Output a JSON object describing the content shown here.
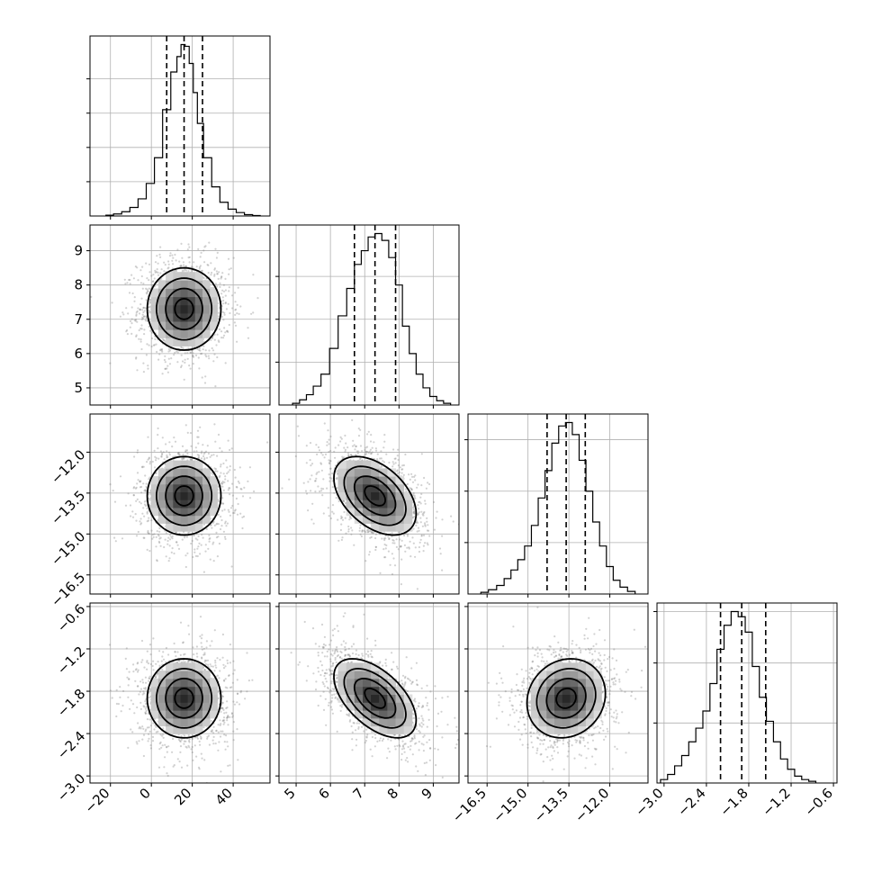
{
  "chart_data": {
    "type": "corner",
    "grid": true,
    "quantiles": [
      0.16,
      0.5,
      0.84
    ],
    "params": [
      {
        "range": [
          -30,
          58
        ],
        "ticks": [
          -20,
          0,
          20,
          40
        ],
        "tick_labels": [
          "−20",
          "0",
          "20",
          "40"
        ],
        "mean": 16,
        "sd": 9,
        "q": [
          7.5,
          16,
          25
        ],
        "hist_x": [
          -20.5,
          -16.5,
          -12.5,
          -8.5,
          -4.5,
          -0.5,
          3.5,
          7.5,
          11.5,
          13.5,
          15.5,
          17.5,
          19.5,
          21.5,
          23.5,
          27.5,
          31.5,
          35.5,
          39.5,
          43.5,
          47.5,
          51.5
        ],
        "hist_counts": [
          0.005,
          0.012,
          0.025,
          0.05,
          0.1,
          0.19,
          0.34,
          0.62,
          0.84,
          0.93,
          1.0,
          0.99,
          0.89,
          0.72,
          0.54,
          0.34,
          0.17,
          0.08,
          0.04,
          0.02,
          0.008,
          0.003
        ],
        "hist_yticks": [
          0.2,
          0.4,
          0.6,
          0.8
        ]
      },
      {
        "range": [
          4.5,
          9.75
        ],
        "ticks": [
          5,
          6,
          7,
          8,
          9
        ],
        "tick_labels": [
          "5",
          "6",
          "7",
          "8",
          "9"
        ],
        "mean": 7.3,
        "sd": 0.6,
        "q": [
          6.7,
          7.3,
          7.9
        ],
        "hist_x": [
          5.0,
          5.2,
          5.4,
          5.6,
          5.85,
          6.1,
          6.35,
          6.6,
          6.8,
          7.0,
          7.2,
          7.4,
          7.6,
          7.8,
          8.0,
          8.2,
          8.4,
          8.6,
          8.8,
          9.0,
          9.2,
          9.4
        ],
        "hist_counts": [
          0.01,
          0.03,
          0.06,
          0.11,
          0.18,
          0.33,
          0.52,
          0.68,
          0.82,
          0.9,
          0.98,
          1.0,
          0.96,
          0.86,
          0.7,
          0.46,
          0.3,
          0.18,
          0.1,
          0.05,
          0.025,
          0.01
        ],
        "hist_yticks": [
          0.25,
          0.5,
          0.75
        ]
      },
      {
        "range": [
          -17.2,
          -10.6
        ],
        "ticks": [
          -16.5,
          -15.0,
          -13.5,
          -12.0
        ],
        "tick_labels": [
          "−16.5",
          "−15.0",
          "−13.5",
          "−12.0"
        ],
        "mean": -13.6,
        "sd": 0.72,
        "q": [
          -14.3,
          -13.6,
          -12.9
        ],
        "hist_x": [
          -16.6,
          -16.3,
          -16.0,
          -15.75,
          -15.5,
          -15.25,
          -15.0,
          -14.75,
          -14.5,
          -14.25,
          -14.0,
          -13.75,
          -13.5,
          -13.25,
          -13.0,
          -12.75,
          -12.5,
          -12.25,
          -12.0,
          -11.75,
          -11.5,
          -11.2
        ],
        "hist_counts": [
          0.01,
          0.025,
          0.05,
          0.09,
          0.14,
          0.2,
          0.28,
          0.4,
          0.56,
          0.72,
          0.88,
          0.98,
          1.0,
          0.93,
          0.78,
          0.6,
          0.42,
          0.28,
          0.16,
          0.08,
          0.04,
          0.015
        ],
        "hist_yticks": [
          0.3,
          0.6,
          0.9
        ]
      },
      {
        "range": [
          -3.1,
          -0.55
        ],
        "ticks": [
          -3.0,
          -2.4,
          -1.8,
          -1.2,
          -0.6
        ],
        "tick_labels": [
          "−3.0",
          "−2.4",
          "−1.8",
          "−1.2",
          "−0.6"
        ],
        "mean": -1.9,
        "sd": 0.28,
        "q": [
          -2.2,
          -1.9,
          -1.56
        ],
        "hist_x": [
          -3.0,
          -2.9,
          -2.8,
          -2.7,
          -2.6,
          -2.5,
          -2.4,
          -2.3,
          -2.2,
          -2.1,
          -2.0,
          -1.9,
          -1.8,
          -1.7,
          -1.6,
          -1.5,
          -1.4,
          -1.3,
          -1.2,
          -1.1,
          -1.0,
          -0.9
        ],
        "hist_counts": [
          0.02,
          0.05,
          0.1,
          0.16,
          0.24,
          0.32,
          0.42,
          0.58,
          0.78,
          0.92,
          1.0,
          0.97,
          0.88,
          0.68,
          0.5,
          0.36,
          0.24,
          0.14,
          0.08,
          0.04,
          0.02,
          0.01
        ],
        "hist_yticks": [
          0.35,
          0.7,
          1.0
        ]
      }
    ],
    "correlations": {
      "1,0": 0.0,
      "2,0": 0.0,
      "2,1": -0.45,
      "3,0": 0.0,
      "3,1": -0.55,
      "3,2": 0.12
    }
  }
}
